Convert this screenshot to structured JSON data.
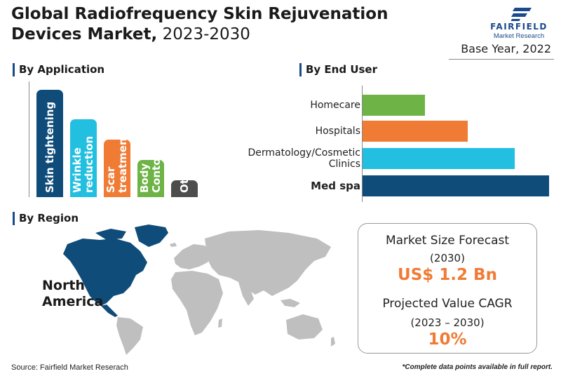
{
  "header": {
    "title_bold": "Global Radiofrequency Skin Rejuvenation Devices Market,",
    "title_light": " 2023-2030",
    "logo_name": "FAIRFIELD",
    "logo_sub": "Market Research",
    "base_year": "Base Year, 2022"
  },
  "colors": {
    "navy": "#0f4c7a",
    "cyan": "#22bfe0",
    "orange": "#f07b35",
    "green": "#6db345",
    "gray": "#4d4d4d",
    "brand": "#1b4a8c",
    "map_highlight": "#0f4c7a",
    "map_base": "#bfbfbf"
  },
  "chart_data": [
    {
      "type": "bar",
      "title": "By Application",
      "categories": [
        "Skin tightening",
        "Wrinkle\nreduction",
        "Scar\ntreatment",
        "Body\nContouring",
        "Others"
      ],
      "ranks": [
        5,
        4,
        3,
        2,
        1
      ],
      "bar_colors": [
        "#0f4c7a",
        "#22bfe0",
        "#f07b35",
        "#6db345",
        "#4d4d4d"
      ]
    },
    {
      "type": "bar",
      "orientation": "horizontal",
      "title": "By End User",
      "categories": [
        "Homecare",
        "Hospitals",
        "Dermatology/Cosmetic\nClinics",
        "Med spa"
      ],
      "ranks": [
        1,
        2,
        3,
        4
      ],
      "bar_colors": [
        "#6db345",
        "#f07b35",
        "#22bfe0",
        "#0f4c7a"
      ],
      "highlight": "Med spa"
    }
  ],
  "region": {
    "title": "By Region",
    "leading_region": "North\nAmerica"
  },
  "forecast": {
    "market_label": "Market Size Forecast",
    "market_year": "(2030)",
    "market_value": "US$ 1.2 Bn",
    "cagr_label": "Projected Value CAGR",
    "cagr_period": "(2023 – 2030)",
    "cagr_value": "10%"
  },
  "footer": {
    "source": "Source: Fairfield Market Reserach",
    "note": "*Complete data points available in full report."
  }
}
